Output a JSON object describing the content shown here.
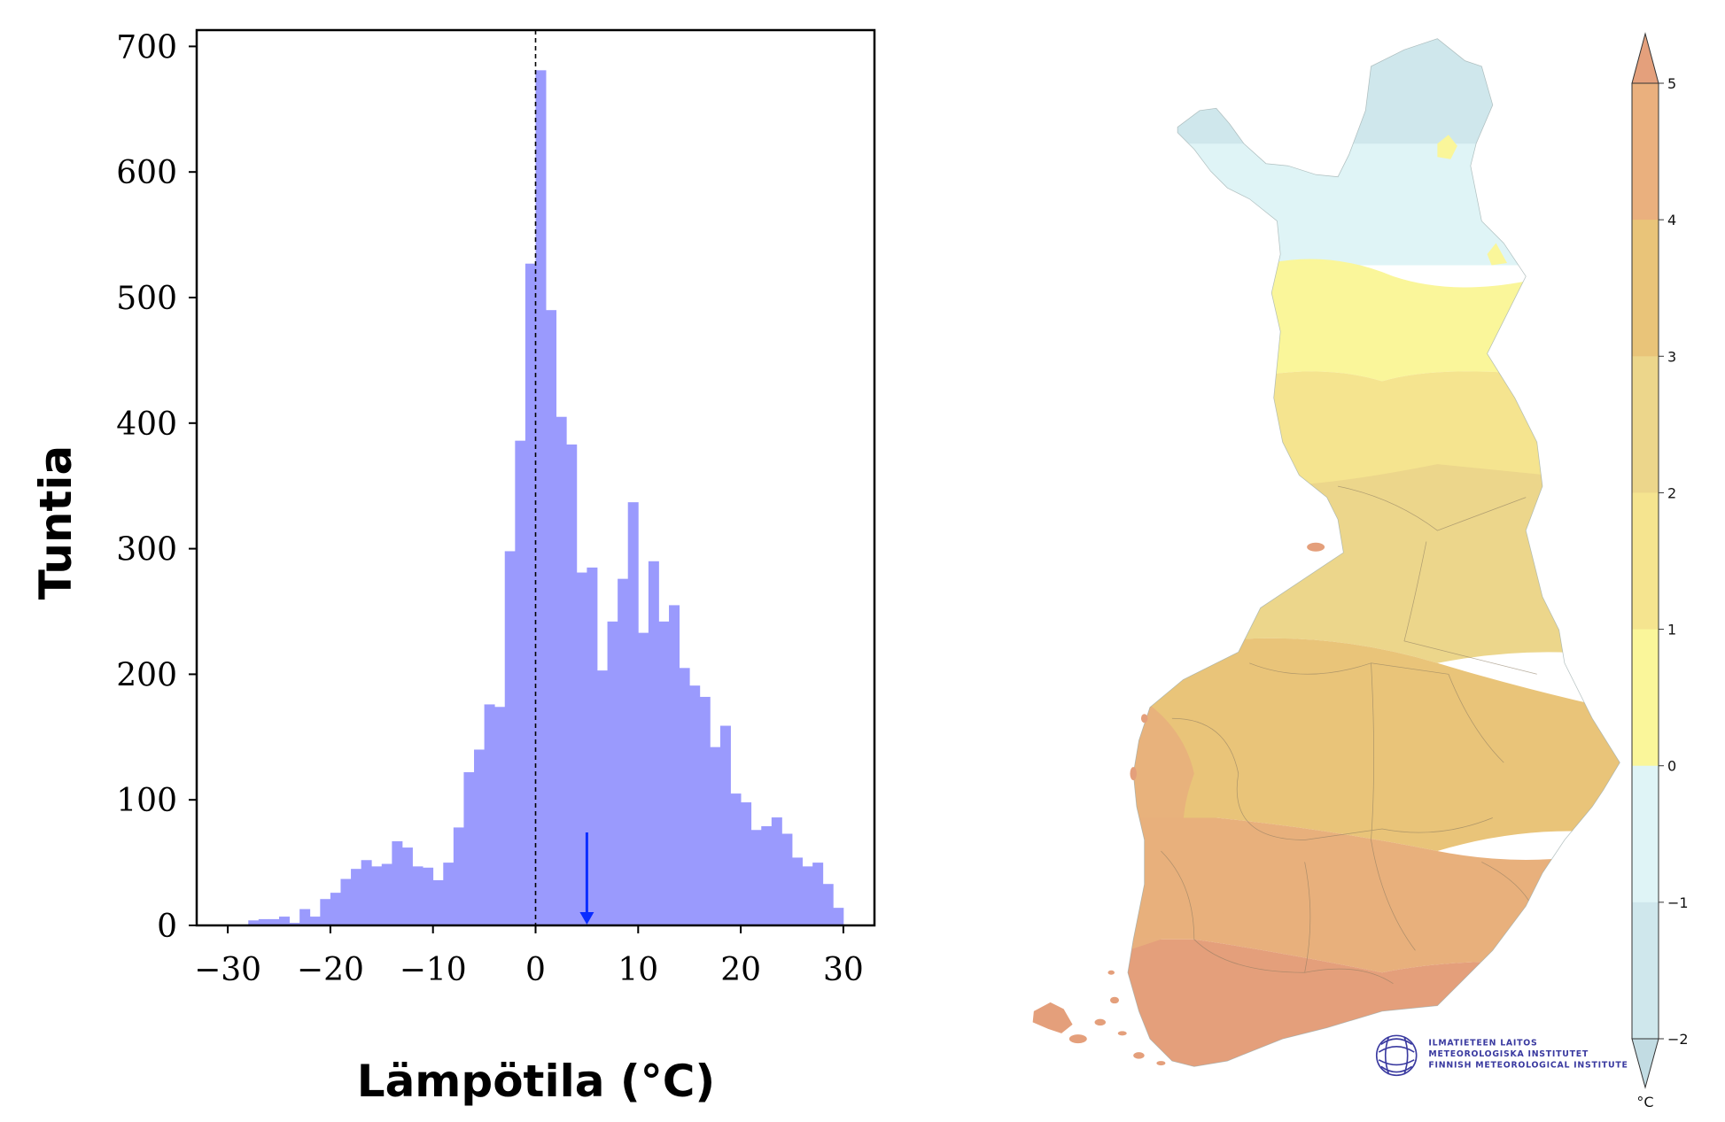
{
  "chart_data": {
    "type": "bar",
    "title": "",
    "xlabel": "Lämpötila (°C)",
    "ylabel": "Tuntia",
    "xlim": [
      -33,
      33
    ],
    "ylim": [
      0,
      715
    ],
    "xticks": [
      -30,
      -20,
      -10,
      0,
      10,
      20,
      30
    ],
    "xtick_labels": [
      "−30",
      "−20",
      "−10",
      "0",
      "10",
      "20",
      "30"
    ],
    "yticks": [
      0,
      100,
      200,
      300,
      400,
      500,
      600,
      700
    ],
    "ytick_labels": [
      "0",
      "100",
      "200",
      "300",
      "400",
      "500",
      "600",
      "700"
    ],
    "bin_width": 1,
    "bin_start": -28,
    "values": [
      4,
      5,
      5,
      7,
      2,
      13,
      7,
      21,
      26,
      37,
      45,
      52,
      47,
      49,
      67,
      62,
      47,
      46,
      36,
      50,
      78,
      122,
      140,
      176,
      174,
      298,
      386,
      527,
      681,
      490,
      405,
      383,
      281,
      285,
      203,
      242,
      276,
      337,
      233,
      290,
      242,
      255,
      205,
      191,
      182,
      142,
      159,
      105,
      98,
      76,
      79,
      86,
      73,
      54,
      47,
      50,
      33,
      14
    ],
    "bar_color": "#9a9afd",
    "reference_line_x": 0,
    "arrow_marker_x": 5,
    "arrow_color": "#0a2cff",
    "grid": false
  },
  "map": {
    "colorbar": {
      "unit": "°C",
      "ticks": [
        "5",
        "4",
        "3",
        "2",
        "1",
        "0",
        "−1",
        "−2"
      ],
      "levels": [
        {
          "range": "4–5",
          "color": "#eab07e"
        },
        {
          "range": "3–4",
          "color": "#e9c479"
        },
        {
          "range": "2–3",
          "color": "#ecd68b"
        },
        {
          "range": "1–2",
          "color": "#f5e48f"
        },
        {
          "range": "0–1",
          "color": "#faf69a"
        },
        {
          "range": "−1–0",
          "color": "#dff4f6"
        },
        {
          "range": "−2–−1",
          "color": "#cfe7ec"
        }
      ],
      "extend_max_color": "#e4a07c",
      "extend_min_color": "#c2dce3"
    },
    "logo": {
      "line1": "ILMATIETEEN LAITOS",
      "line2": "METEOROLOGISKA INSTITUTET",
      "line3": "FINNISH METEOROLOGICAL INSTITUTE"
    }
  }
}
